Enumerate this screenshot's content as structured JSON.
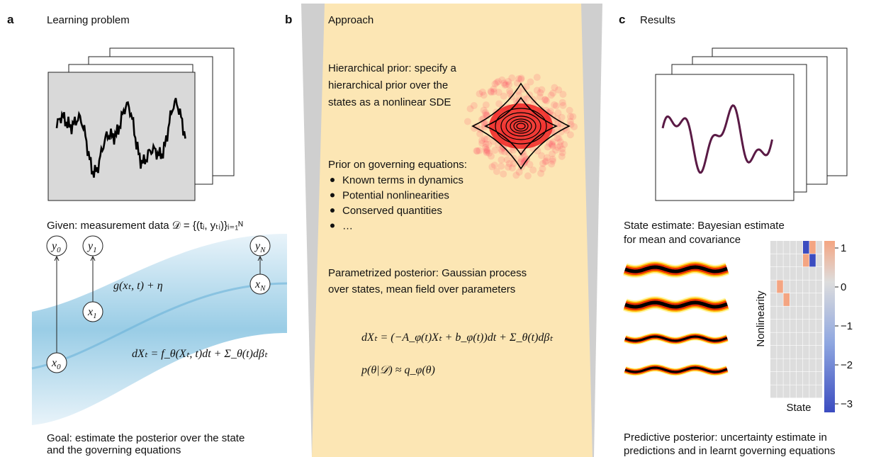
{
  "panels": [
    {
      "letter": "a",
      "title": "Learning problem",
      "given": "Given: measurement data 𝒟 = {(tᵢ, yₜᵢ)}ᵢ₌₁ᴺ",
      "nodes": [
        {
          "base": "y",
          "sub": "0"
        },
        {
          "base": "y",
          "sub": "1"
        },
        {
          "base": "y",
          "sub": "N"
        },
        {
          "base": "x",
          "sub": "0"
        },
        {
          "base": "x",
          "sub": "1"
        },
        {
          "base": "x",
          "sub": "N"
        }
      ],
      "observation": "g(xₜ, t) + η",
      "sde": "dXₜ = f_θ(Xₜ, t)dt + Σ_θ(t)dβₜ",
      "goal": [
        "Goal: estimate the posterior over the state",
        "and the governing equations"
      ]
    },
    {
      "letter": "b",
      "title": "Approach",
      "prior": [
        "Hierarchical prior: specify a",
        "hierarchical prior over the",
        "states as a nonlinear SDE"
      ],
      "governing_title": "Prior on governing equations:",
      "bullets": [
        "Known terms in dynamics",
        "Potential nonlinearities",
        "Conserved quantities",
        "…"
      ],
      "posterior": [
        "Parametrized posterior: Gaussian process",
        "over states, mean field over parameters"
      ],
      "equations": [
        "dXₜ = (−A_φ(t)Xₜ + b_φ(t))dt + Σ_θ(t)dβₜ",
        "p(θ|𝒟) ≈ q_φ(θ)"
      ]
    },
    {
      "letter": "c",
      "title": "Results",
      "state_estimate": [
        "State estimate: Bayesian estimate",
        "for mean and covariance"
      ],
      "colorbar_ticks": [
        "1",
        "0",
        "−1",
        "−2",
        "−3"
      ],
      "ylabel": "Nonlinearity",
      "xlabel": "State",
      "predictive": [
        "Predictive posterior: uncertainty estimate in",
        "predictions and in learnt governing equations"
      ]
    }
  ]
}
